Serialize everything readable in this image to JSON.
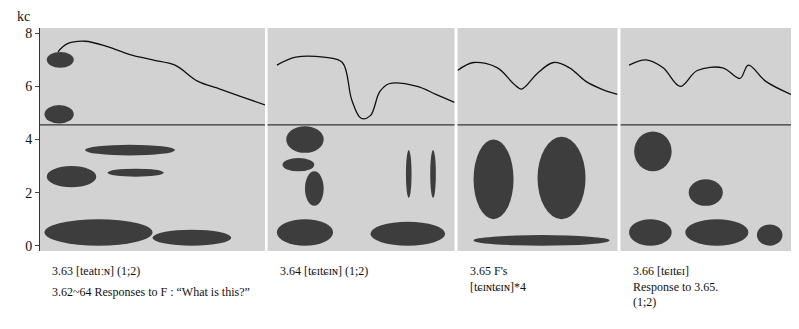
{
  "chart_data": [
    {
      "type": "spectrogram",
      "caption": [
        "3.63 [teatɪːɴ] (1;2)"
      ],
      "note": "3.62~64 Responses to F : “What is this?”",
      "y_label": "kc",
      "xlim": [
        0,
        1
      ],
      "ylim": [
        -0.2,
        8.2
      ],
      "yticks": [
        0,
        2,
        4,
        6,
        8
      ],
      "tick_labels": "y",
      "color": "#1c1c1c",
      "reference_line": 4.55,
      "pitch_contour": {
        "x": [
          0.08,
          0.12,
          0.2,
          0.3,
          0.4,
          0.5,
          0.6,
          0.7,
          0.8,
          0.9,
          1.0
        ],
        "values": [
          7.3,
          7.6,
          7.7,
          7.5,
          7.2,
          7.0,
          6.8,
          6.2,
          5.9,
          5.6,
          5.3
        ]
      },
      "energy_bands": [
        {
          "t": [
            0.03,
            0.15
          ],
          "f": [
            6.7,
            7.3
          ]
        },
        {
          "t": [
            0.02,
            0.15
          ],
          "f": [
            4.6,
            5.3
          ]
        },
        {
          "t": [
            0.03,
            0.25
          ],
          "f": [
            2.2,
            3.0
          ]
        },
        {
          "t": [
            0.3,
            0.55
          ],
          "f": [
            2.6,
            2.9
          ]
        },
        {
          "t": [
            0.2,
            0.6
          ],
          "f": [
            3.4,
            3.8
          ]
        },
        {
          "t": [
            0.02,
            0.5
          ],
          "f": [
            0.0,
            1.0
          ]
        },
        {
          "t": [
            0.5,
            0.85
          ],
          "f": [
            0.0,
            0.6
          ]
        }
      ]
    },
    {
      "type": "spectrogram",
      "caption": [
        "3.64 [tɕɪtɕɪɴ] (1;2)"
      ],
      "xlim": [
        0,
        1
      ],
      "ylim": [
        -0.2,
        8.2
      ],
      "tick_labels": false,
      "color": "#1c1c1c",
      "reference_line": 4.55,
      "pitch_contour": {
        "x": [
          0.05,
          0.15,
          0.3,
          0.4,
          0.45,
          0.5,
          0.55,
          0.6,
          0.65,
          0.8,
          0.9,
          1.0
        ],
        "values": [
          6.8,
          7.1,
          7.1,
          6.9,
          5.5,
          4.8,
          4.9,
          5.8,
          6.1,
          6.0,
          5.7,
          5.4
        ]
      },
      "energy_bands": [
        {
          "t": [
            0.1,
            0.3
          ],
          "f": [
            3.5,
            4.5
          ]
        },
        {
          "t": [
            0.08,
            0.25
          ],
          "f": [
            2.8,
            3.3
          ]
        },
        {
          "t": [
            0.2,
            0.3
          ],
          "f": [
            1.5,
            2.8
          ]
        },
        {
          "t": [
            0.05,
            0.35
          ],
          "f": [
            0.0,
            1.0
          ]
        },
        {
          "t": [
            0.55,
            0.95
          ],
          "f": [
            0.0,
            0.9
          ]
        },
        {
          "t": [
            0.74,
            0.77
          ],
          "f": [
            1.8,
            3.6
          ]
        },
        {
          "t": [
            0.87,
            0.9
          ],
          "f": [
            1.8,
            3.6
          ]
        }
      ]
    },
    {
      "type": "spectrogram",
      "caption": [
        "3.65 F's",
        "[tɕɪɴtɕɪɴ]*4"
      ],
      "xlim": [
        0,
        1
      ],
      "ylim": [
        -0.2,
        8.2
      ],
      "tick_labels": false,
      "color": "#1c1c1c",
      "reference_line": 4.55,
      "pitch_contour": {
        "x": [
          0.0,
          0.1,
          0.25,
          0.35,
          0.4,
          0.5,
          0.6,
          0.7,
          0.8,
          0.9,
          1.0
        ],
        "values": [
          6.6,
          6.9,
          6.7,
          6.1,
          5.9,
          6.5,
          6.9,
          6.7,
          6.2,
          5.9,
          5.7
        ]
      },
      "energy_bands": [
        {
          "t": [
            0.1,
            0.35
          ],
          "f": [
            1.0,
            4.0
          ]
        },
        {
          "t": [
            0.5,
            0.8
          ],
          "f": [
            1.0,
            4.1
          ]
        },
        {
          "t": [
            0.1,
            0.95
          ],
          "f": [
            0.0,
            0.4
          ]
        }
      ]
    },
    {
      "type": "spectrogram",
      "caption": [
        "3.66 [tɕɪtɕɪ]",
        "Response to 3.65.",
        "(1;2)"
      ],
      "xlim": [
        0,
        1
      ],
      "ylim": [
        -0.2,
        8.2
      ],
      "tick_labels": false,
      "color": "#1c1c1c",
      "reference_line": 4.55,
      "pitch_contour": {
        "x": [
          0.05,
          0.15,
          0.25,
          0.35,
          0.45,
          0.6,
          0.7,
          0.75,
          0.85,
          1.0
        ],
        "values": [
          6.8,
          7.0,
          6.7,
          6.0,
          6.6,
          6.7,
          6.3,
          6.8,
          6.2,
          5.7
        ]
      },
      "energy_bands": [
        {
          "t": [
            0.08,
            0.3
          ],
          "f": [
            2.8,
            4.3
          ]
        },
        {
          "t": [
            0.05,
            0.3
          ],
          "f": [
            0.0,
            1.0
          ]
        },
        {
          "t": [
            0.38,
            0.75
          ],
          "f": [
            0.0,
            1.0
          ]
        },
        {
          "t": [
            0.4,
            0.6
          ],
          "f": [
            1.5,
            2.5
          ]
        },
        {
          "t": [
            0.8,
            0.95
          ],
          "f": [
            0.0,
            0.8
          ]
        }
      ]
    }
  ]
}
